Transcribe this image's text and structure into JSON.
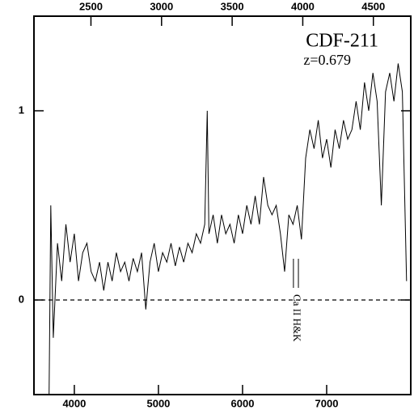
{
  "chart_data": {
    "type": "line",
    "annotations": [
      "CDF-211",
      "z=0.679",
      "Ca II H&K"
    ],
    "x": [
      3700,
      3720,
      3750,
      3800,
      3850,
      3900,
      3950,
      4000,
      4050,
      4100,
      4150,
      4200,
      4250,
      4300,
      4350,
      4400,
      4450,
      4500,
      4550,
      4600,
      4650,
      4700,
      4750,
      4800,
      4850,
      4900,
      4950,
      5000,
      5050,
      5100,
      5150,
      5200,
      5250,
      5300,
      5350,
      5400,
      5450,
      5500,
      5550,
      5580,
      5600,
      5650,
      5700,
      5750,
      5800,
      5850,
      5900,
      5950,
      6000,
      6050,
      6100,
      6150,
      6200,
      6250,
      6300,
      6350,
      6400,
      6450,
      6500,
      6550,
      6600,
      6650,
      6700,
      6750,
      6800,
      6850,
      6900,
      6950,
      7000,
      7050,
      7100,
      7150,
      7200,
      7250,
      7300,
      7350,
      7400,
      7450,
      7500,
      7550,
      7600,
      7650,
      7700,
      7750,
      7800,
      7850,
      7900,
      7950
    ],
    "series": [
      {
        "color": "#000000",
        "values": [
          -0.5,
          0.5,
          -0.2,
          0.3,
          0.1,
          0.4,
          0.2,
          0.35,
          0.1,
          0.25,
          0.3,
          0.15,
          0.1,
          0.2,
          0.05,
          0.2,
          0.1,
          0.25,
          0.15,
          0.2,
          0.1,
          0.22,
          0.15,
          0.25,
          -0.05,
          0.2,
          0.3,
          0.15,
          0.25,
          0.2,
          0.3,
          0.18,
          0.28,
          0.2,
          0.3,
          0.25,
          0.35,
          0.3,
          0.4,
          1.0,
          0.35,
          0.45,
          0.3,
          0.45,
          0.35,
          0.4,
          0.3,
          0.45,
          0.35,
          0.5,
          0.4,
          0.55,
          0.4,
          0.65,
          0.5,
          0.45,
          0.5,
          0.35,
          0.15,
          0.45,
          0.4,
          0.5,
          0.32,
          0.75,
          0.9,
          0.8,
          0.95,
          0.75,
          0.85,
          0.7,
          0.9,
          0.8,
          0.95,
          0.85,
          0.9,
          1.05,
          0.9,
          1.15,
          1.0,
          1.2,
          1.05,
          0.5,
          1.1,
          1.2,
          1.05,
          1.25,
          1.1,
          0.1
        ]
      }
    ],
    "xlim": [
      3520,
      8000
    ],
    "ylim": [
      -0.5,
      1.5
    ],
    "xticks": [
      4000,
      5000,
      6000,
      7000
    ],
    "yticks": [
      0,
      1
    ],
    "x2ticks": [
      {
        "value": 4197.5,
        "label": "2500"
      },
      {
        "value": 5037,
        "label": "3000"
      },
      {
        "value": 5876.5,
        "label": "3500"
      },
      {
        "value": 6716,
        "label": "4000"
      },
      {
        "value": 7555.5,
        "label": "4500"
      }
    ],
    "hline": 0,
    "line_markers": [
      6605,
      6664
    ]
  }
}
